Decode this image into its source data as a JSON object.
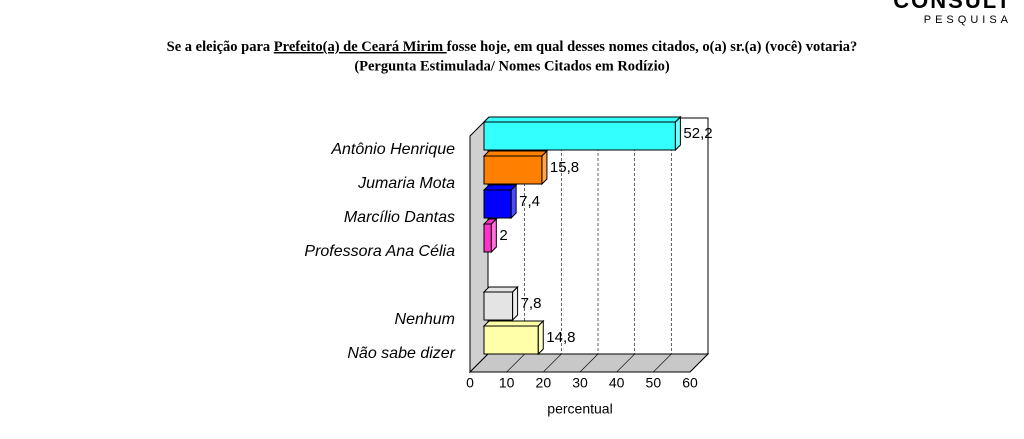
{
  "chart_data": {
    "type": "bar3d_horizontal",
    "brand": "CONSULT",
    "brand_sub": "PESQUISA",
    "title": [
      "Se a eleição para ",
      "Prefeito(a) de Ceará Mirim ",
      "fosse hoje, em qual desses nomes citados, o(a) sr.(a) (você) votaria?"
    ],
    "subtitle": "(Pergunta Estimulada/ Nomes Citados em Rodízio)",
    "categories": [
      "Antônio Henrique",
      "Jumaria Mota",
      "Marcílio Dantas",
      "Professora Ana Célia",
      null,
      "Nenhum",
      "Não sabe dizer"
    ],
    "values": [
      52.2,
      15.8,
      7.4,
      2,
      null,
      7.8,
      14.8
    ],
    "value_labels": [
      "52,2",
      "15,8",
      "7,4",
      "2",
      null,
      "7,8",
      "14,8"
    ],
    "colors": [
      "#33ffff",
      "#ff8000",
      "#0000ff",
      "#ff33cc",
      null,
      "#e4e4e4",
      "#ffffaa"
    ],
    "xlabel": "percentual",
    "xlim": [
      0,
      60
    ],
    "xticks": [
      0,
      10,
      20,
      30,
      40,
      50,
      60
    ],
    "grid": true
  }
}
